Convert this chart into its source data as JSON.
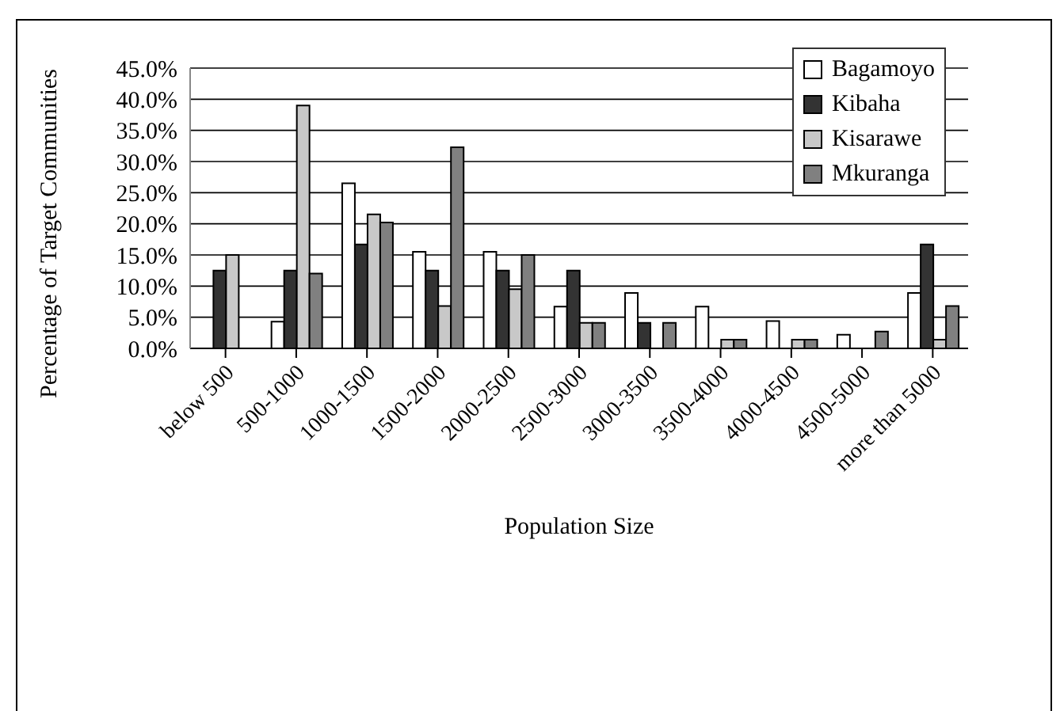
{
  "chart_data": {
    "type": "bar",
    "xlabel": "Population Size",
    "ylabel": "Percentage of Target Communities",
    "categories": [
      "below 500",
      "500-1000",
      "1000-1500",
      "1500-2000",
      "2000-2500",
      "2500-3000",
      "3000-3500",
      "3500-4000",
      "4000-4500",
      "4500-5000",
      "more than 5000"
    ],
    "series": [
      {
        "name": "Bagamoyo",
        "color": "#ffffff",
        "values": [
          0,
          4.3,
          26.5,
          15.5,
          15.5,
          6.7,
          8.9,
          6.7,
          4.4,
          2.2,
          8.9
        ]
      },
      {
        "name": "Kibaha",
        "color": "#333333",
        "values": [
          12.5,
          12.5,
          16.7,
          12.5,
          12.5,
          12.5,
          4.1,
          0,
          0,
          0,
          16.7
        ]
      },
      {
        "name": "Kisarawe",
        "color": "#c8c8c8",
        "values": [
          15,
          39,
          21.5,
          6.8,
          9.5,
          4.1,
          0,
          1.4,
          1.4,
          0,
          1.4
        ]
      },
      {
        "name": "Mkuranga",
        "color": "#808080",
        "values": [
          0,
          12,
          20.2,
          32.3,
          15,
          4.1,
          4.1,
          1.4,
          1.4,
          2.7,
          6.8
        ]
      }
    ],
    "ylim": [
      0,
      45
    ],
    "yticks": [
      {
        "value": 0,
        "label": "0.0%"
      },
      {
        "value": 5,
        "label": "5.0%"
      },
      {
        "value": 10,
        "label": "10.0%"
      },
      {
        "value": 15,
        "label": "15.0%"
      },
      {
        "value": 20,
        "label": "20.0%"
      },
      {
        "value": 25,
        "label": "25.0%"
      },
      {
        "value": 30,
        "label": "30.0%"
      },
      {
        "value": 35,
        "label": "35.0%"
      },
      {
        "value": 40,
        "label": "40.0%"
      },
      {
        "value": 45,
        "label": "45.0%"
      }
    ],
    "grid": "y",
    "legend": "top right"
  }
}
